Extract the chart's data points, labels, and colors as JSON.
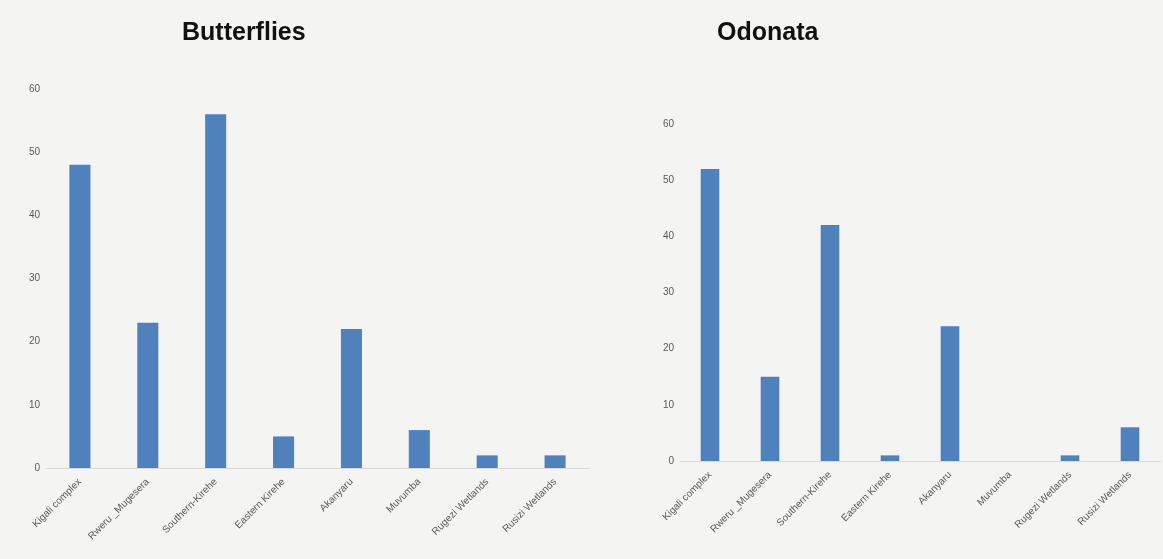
{
  "chart_data": [
    {
      "type": "bar",
      "title": "Butterflies",
      "categories": [
        "Kigali complex",
        "Rweru _Mugesera",
        "Southern-Kirehe",
        "Eastern Kirehe",
        "Akanyaru",
        "Muvumba",
        "Rugezi Wetlands",
        "Rusizi Wetlands"
      ],
      "values": [
        48,
        23,
        56,
        5,
        22,
        6,
        2,
        2
      ],
      "color": "#4f81bd",
      "ylim": [
        0,
        60
      ],
      "yticks": [
        0,
        10,
        20,
        30,
        40,
        50,
        60
      ]
    },
    {
      "type": "bar",
      "title": "Odonata",
      "categories": [
        "Kigali complex",
        "Rweru _Mugesera",
        "Southern-Kirehe",
        "Eastern Kirehe",
        "Akanyaru",
        "Muvumba",
        "Rugezi Wetlands",
        "Rusizi Wetlands"
      ],
      "values": [
        52,
        15,
        42,
        1,
        24,
        0,
        1,
        6
      ],
      "color": "#4f81bd",
      "ylim": [
        0,
        60
      ],
      "yticks": [
        0,
        10,
        20,
        30,
        40,
        50,
        60
      ]
    }
  ]
}
